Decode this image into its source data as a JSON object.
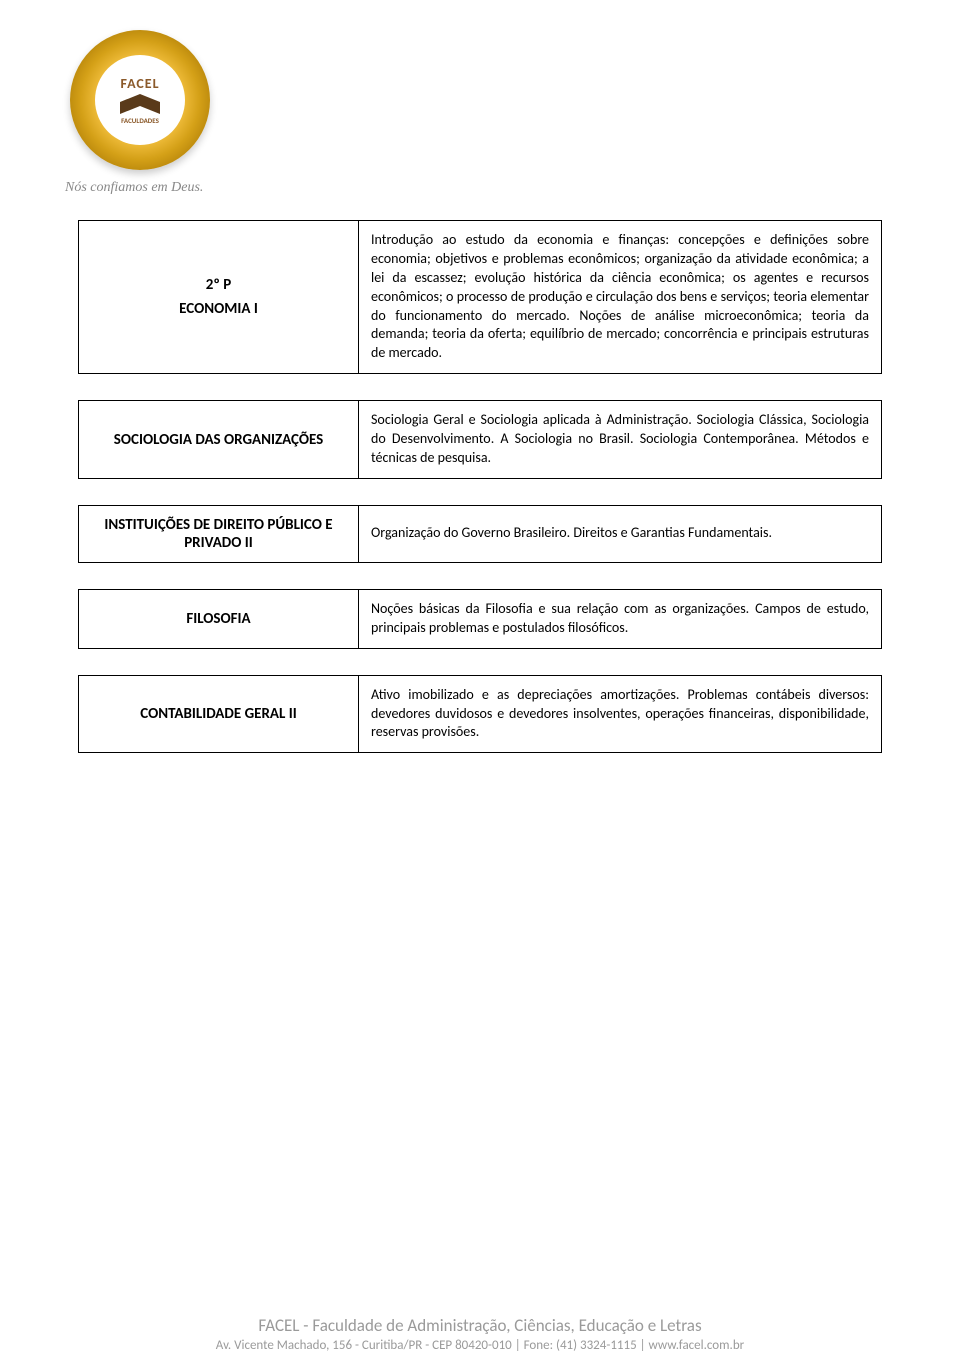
{
  "logo": {
    "name": "FACEL",
    "subtitle": "FACULDADES"
  },
  "tagline": "Nós confiamos em Deus.",
  "rows": [
    {
      "period": "2º P",
      "title": "ECONOMIA I",
      "description": "Introdução ao estudo da economia e finanças: concepções e definições sobre economia; objetivos e problemas econômicos; organização da atividade econômica; a lei da escassez; evolução histórica da ciência econômica; os agentes e recursos econômicos; o processo de produção e circulação dos bens e serviços; teoria elementar do funcionamento do mercado. Noções de análise microeconômica; teoria da demanda; teoria da oferta; equilíbrio de mercado; concorrência e principais estruturas de mercado."
    },
    {
      "title": "SOCIOLOGIA DAS ORGANIZAÇÕES",
      "description": "Sociologia Geral e Sociologia aplicada à Administração. Sociologia Clássica, Sociologia do Desenvolvimento. A Sociologia no Brasil. Sociologia Contemporânea. Métodos e técnicas de pesquisa."
    },
    {
      "title": "INSTITUIÇÕES DE DIREITO PÚBLICO E PRIVADO II",
      "description": "Organização do Governo Brasileiro. Direitos e Garantias Fundamentais."
    },
    {
      "title": "FILOSOFIA",
      "description": "Noções básicas da Filosofia e sua relação com as organizações. Campos de estudo, principais problemas e postulados filosóficos."
    },
    {
      "title": "CONTABILIDADE GERAL II",
      "description": "Ativo imobilizado e as depreciações amortizações. Problemas contábeis diversos: devedores duvidosos e devedores insolventes, operações financeiras, disponibilidade, reservas provisões."
    }
  ],
  "footer": {
    "title": "FACEL - Faculdade de Administração, Ciências, Educação e Letras",
    "sub": "Av. Vicente Machado, 156 - Curitiba/PR - CEP 80420-010 | Fone: (41) 3324-1115 | www.facel.com.br"
  }
}
